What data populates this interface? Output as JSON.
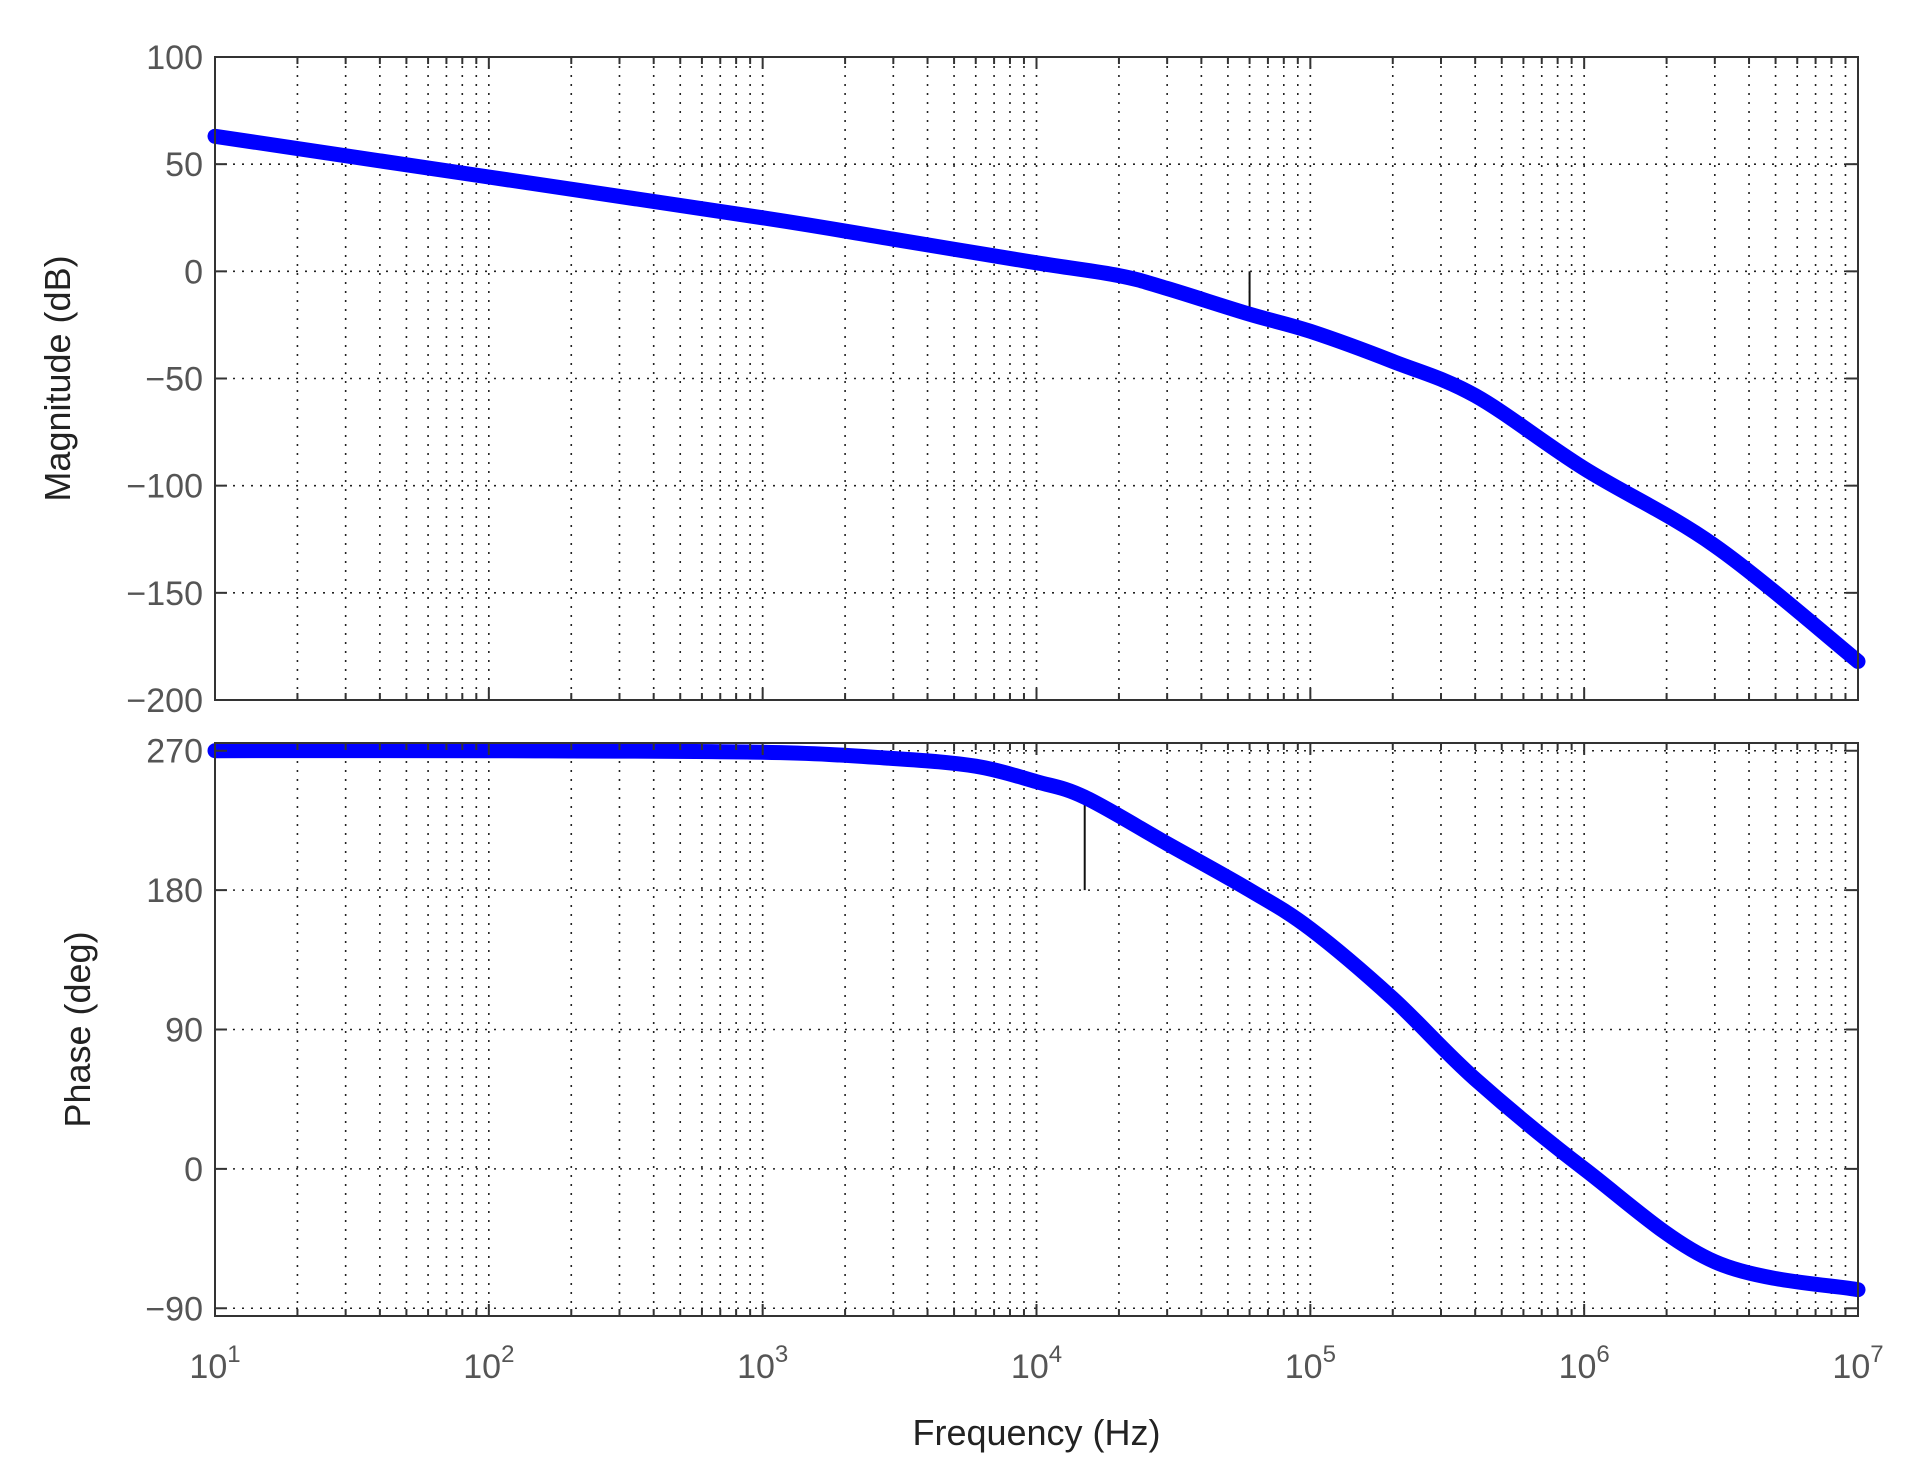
{
  "chart_data": [
    {
      "type": "line",
      "panel": "magnitude",
      "ylabel": "Magnitude (dB)",
      "xscale": "log",
      "xlim": [
        10,
        10000000
      ],
      "ylim": [
        -200,
        100
      ],
      "yticks": [
        100,
        50,
        0,
        -50,
        -100,
        -150,
        -200
      ],
      "ytick_labels": [
        "100",
        "50",
        "0",
        "−50",
        "−100",
        "−150",
        "−200"
      ],
      "grid": true,
      "series": [
        {
          "color": "#0000ff",
          "x": [
            10,
            100,
            1000,
            3000,
            10000,
            20000,
            30000,
            60000,
            100000,
            200000,
            400000,
            1000000,
            3000000,
            10000000
          ],
          "y": [
            63,
            44,
            25,
            15,
            4,
            -2,
            -8,
            -20,
            -28,
            -42,
            -58,
            -92,
            -128,
            -182
          ]
        }
      ],
      "markers": [
        {
          "x": 60000,
          "y_from": 0,
          "y_to": -20
        }
      ]
    },
    {
      "type": "line",
      "panel": "phase",
      "ylabel": "Phase (deg)",
      "xlabel": "Frequency  (Hz)",
      "xscale": "log",
      "xlim": [
        10,
        10000000
      ],
      "ylim": [
        -95,
        275
      ],
      "yticks": [
        270,
        180,
        90,
        0,
        -90
      ],
      "ytick_labels": [
        "270",
        "180",
        "90",
        "0",
        "−90"
      ],
      "xticks": [
        10,
        100,
        1000,
        10000,
        100000,
        1000000,
        10000000
      ],
      "xtick_labels": [
        {
          "base": "10",
          "exp": "1"
        },
        {
          "base": "10",
          "exp": "2"
        },
        {
          "base": "10",
          "exp": "3"
        },
        {
          "base": "10",
          "exp": "4"
        },
        {
          "base": "10",
          "exp": "5"
        },
        {
          "base": "10",
          "exp": "6"
        },
        {
          "base": "10",
          "exp": "7"
        }
      ],
      "grid": true,
      "series": [
        {
          "color": "#0000ff",
          "x": [
            10,
            100,
            1000,
            3000,
            6000,
            10000,
            15000,
            30000,
            60000,
            100000,
            200000,
            400000,
            1000000,
            3000000,
            10000000
          ],
          "y": [
            270,
            270,
            269,
            265,
            260,
            250,
            240,
            210,
            180,
            155,
            110,
            58,
            0,
            -60,
            -78
          ]
        }
      ],
      "markers": [
        {
          "x": 15000,
          "y_from": 180,
          "y_to": 242
        }
      ]
    }
  ]
}
